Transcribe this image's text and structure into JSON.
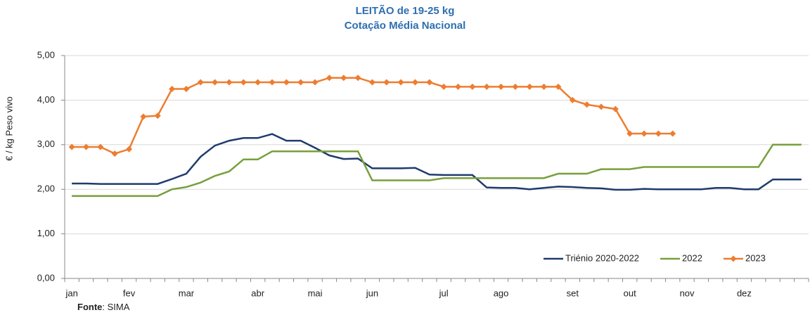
{
  "chart_data": {
    "type": "line",
    "title": "LEITÃO de 19-25 kg",
    "subtitle": "Cotação Média Nacional",
    "y_label": "€ / kg Peso vivo",
    "source_label": "Fonte",
    "source_text": ": SIMA",
    "categories": [
      "jan",
      null,
      null,
      null,
      "fev",
      null,
      null,
      null,
      "mar",
      null,
      null,
      null,
      null,
      "abr",
      null,
      null,
      null,
      "mai",
      null,
      null,
      null,
      "jun",
      null,
      null,
      null,
      null,
      "jul",
      null,
      null,
      null,
      "ago",
      null,
      null,
      null,
      null,
      "set",
      null,
      null,
      null,
      "out",
      null,
      null,
      null,
      "nov",
      null,
      null,
      null,
      "dez",
      null,
      null,
      null,
      null
    ],
    "ylim": [
      0,
      5
    ],
    "yticks": [
      {
        "value": 0,
        "label": "0,00"
      },
      {
        "value": 1,
        "label": "1,00"
      },
      {
        "value": 2,
        "label": "2,00"
      },
      {
        "value": 3,
        "label": "3,00"
      },
      {
        "value": 4,
        "label": "4,00"
      },
      {
        "value": 5,
        "label": "5,00"
      }
    ],
    "grid": true,
    "legend": "bottom-right",
    "series": [
      {
        "name": "Triénio 2020-2022",
        "color": "#1f3b6e",
        "markers": false,
        "values": [
          2.13,
          2.13,
          2.12,
          2.12,
          2.12,
          2.12,
          2.12,
          2.23,
          2.35,
          2.73,
          2.98,
          3.09,
          3.15,
          3.15,
          3.24,
          3.09,
          3.09,
          2.93,
          2.76,
          2.68,
          2.69,
          2.47,
          2.47,
          2.47,
          2.48,
          2.33,
          2.32,
          2.32,
          2.32,
          2.04,
          2.03,
          2.03,
          2.0,
          2.03,
          2.06,
          2.05,
          2.03,
          2.02,
          1.99,
          1.99,
          2.01,
          2.0,
          2.0,
          2.0,
          2.0,
          2.03,
          2.03,
          2.0,
          2.0,
          2.22,
          2.22,
          2.22
        ]
      },
      {
        "name": "2022",
        "color": "#77a03c",
        "markers": false,
        "values": [
          1.85,
          1.85,
          1.85,
          1.85,
          1.85,
          1.85,
          1.85,
          2.0,
          2.05,
          2.15,
          2.3,
          2.4,
          2.67,
          2.67,
          2.85,
          2.85,
          2.85,
          2.85,
          2.85,
          2.85,
          2.85,
          2.2,
          2.2,
          2.2,
          2.2,
          2.2,
          2.25,
          2.25,
          2.25,
          2.25,
          2.25,
          2.25,
          2.25,
          2.25,
          2.35,
          2.35,
          2.35,
          2.45,
          2.45,
          2.45,
          2.5,
          2.5,
          2.5,
          2.5,
          2.5,
          2.5,
          2.5,
          2.5,
          2.5,
          3.0,
          3.0,
          3.0
        ]
      },
      {
        "name": "2023",
        "color": "#ed7d31",
        "markers": true,
        "values": [
          2.95,
          2.95,
          2.95,
          2.8,
          2.9,
          3.63,
          3.65,
          4.25,
          4.25,
          4.4,
          4.4,
          4.4,
          4.4,
          4.4,
          4.4,
          4.4,
          4.4,
          4.4,
          4.5,
          4.5,
          4.5,
          4.4,
          4.4,
          4.4,
          4.4,
          4.4,
          4.3,
          4.3,
          4.3,
          4.3,
          4.3,
          4.3,
          4.3,
          4.3,
          4.3,
          4.0,
          3.9,
          3.85,
          3.8,
          3.25,
          3.25,
          3.25,
          3.25,
          null,
          null,
          null,
          null,
          null,
          null,
          null,
          null,
          null
        ]
      }
    ]
  }
}
